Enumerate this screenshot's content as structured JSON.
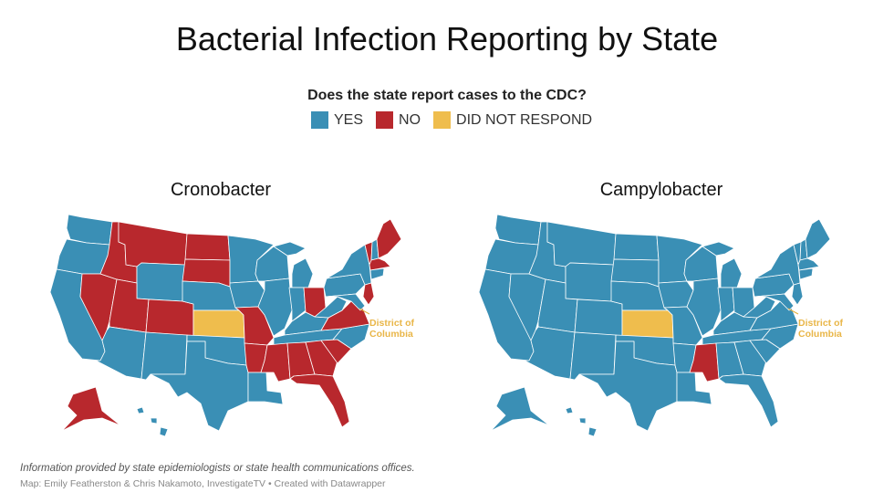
{
  "title": "Bacterial Infection Reporting by State",
  "legend": {
    "question": "Does the state report cases to the CDC?",
    "items": [
      {
        "key": "yes",
        "label": "YES",
        "color": "#3a8fb5"
      },
      {
        "key": "no",
        "label": "NO",
        "color": "#b8282d"
      },
      {
        "key": "dnr",
        "label": "DID NOT RESPOND",
        "color": "#efbd4d"
      }
    ]
  },
  "maps": [
    {
      "title": "Cronobacter",
      "default_status": "yes",
      "no": [
        "ID",
        "MT",
        "ND",
        "SD",
        "NV",
        "UT",
        "CO",
        "MO",
        "AR",
        "MS",
        "AL",
        "GA",
        "SC",
        "FL",
        "OH",
        "VA",
        "NJ",
        "VT",
        "ME",
        "MA",
        "AK"
      ],
      "dnr": [
        "KS"
      ],
      "dc_label": [
        "District of",
        "Columbia"
      ]
    },
    {
      "title": "Campylobacter",
      "default_status": "yes",
      "no": [
        "MS"
      ],
      "dnr": [
        "KS"
      ],
      "dc_label": [
        "District of",
        "Columbia"
      ]
    }
  ],
  "footer": {
    "note": "Information provided by state epidemiologists or state health communications offices.",
    "credit": "Map: Emily Featherston & Chris Nakamoto, InvestigateTV • Created with Datawrapper"
  }
}
